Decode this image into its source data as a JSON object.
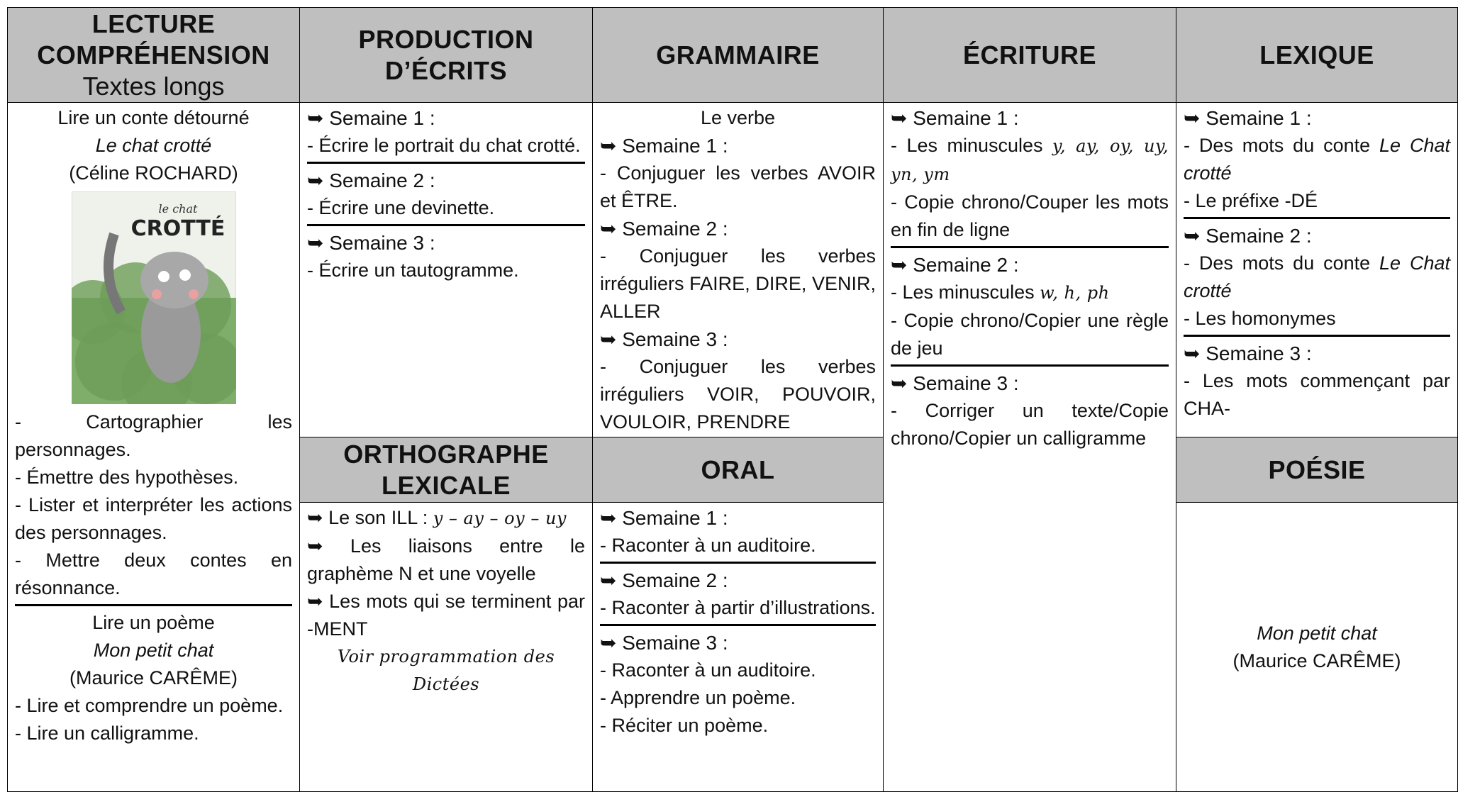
{
  "sections": {
    "lecture": {
      "heading": "LECTURE COMPRÉHENSION",
      "subheading": "Textes longs",
      "blocks": [
        [
          {
            "text": "Lire un conte détourné",
            "style": "center"
          },
          {
            "text": "Le chat crotté",
            "style": "center-italic"
          },
          {
            "text": "(Céline ROCHARD)",
            "style": "center"
          },
          {
            "image": {
              "small": "le chat",
              "big": "CROTTÉ"
            }
          },
          "- Cartographier les personnages.",
          "- Émettre des hypothèses.",
          "- Lister et interpréter les actions des personnages.",
          "- Mettre deux contes en résonnance."
        ],
        [
          {
            "text": "Lire un poème",
            "style": "center"
          },
          {
            "text": "Mon petit chat",
            "style": "center-italic"
          },
          {
            "text": "(Maurice CARÊME)",
            "style": "center"
          },
          "- Lire et comprendre un poème.",
          "- Lire un calligramme."
        ]
      ]
    },
    "production": {
      "heading": "PRODUCTION D’ÉCRITS",
      "blocks": [
        [
          {
            "text": "➥ Semaine 1 :",
            "style": "week"
          },
          "- Écrire le portrait du chat crotté."
        ],
        [
          {
            "text": "➥ Semaine 2 :",
            "style": "week"
          },
          "- Écrire une devinette."
        ],
        [
          {
            "text": "➥ Semaine 3 :",
            "style": "week"
          },
          "- Écrire un tautogramme."
        ]
      ]
    },
    "grammaire": {
      "heading": "GRAMMAIRE",
      "blocks": [
        [
          {
            "text": "Le verbe",
            "style": "center"
          },
          {
            "text": "➥ Semaine 1 :",
            "style": "week"
          },
          "- Conjuguer les verbes AVOIR et ÊTRE.",
          {
            "text": "➥ Semaine 2 :",
            "style": "week"
          },
          "- Conjuguer les verbes irréguliers FAIRE, DIRE, VENIR, ALLER",
          {
            "text": "➥ Semaine 3 :",
            "style": "week"
          },
          "- Conjuguer les verbes irréguliers VOIR, POUVOIR, VOULOIR, PRENDRE"
        ]
      ]
    },
    "ecriture": {
      "heading": "ÉCRITURE",
      "blocks": [
        [
          {
            "text": "➥ Semaine 1 :",
            "style": "week"
          },
          {
            "parts": [
              "- Les minuscules ",
              {
                "text": "y, ay, oy, uy, yn, ym",
                "style": "cursive"
              }
            ]
          },
          "- Copie chrono/Couper les mots en fin de ligne"
        ],
        [
          {
            "text": "➥ Semaine 2 :",
            "style": "week"
          },
          {
            "parts": [
              "- Les minuscules ",
              {
                "text": "w, h, ph",
                "style": "cursive"
              }
            ]
          },
          "- Copie chrono/Copier une règle de jeu"
        ],
        [
          {
            "text": "➥ Semaine 3 :",
            "style": "week"
          },
          "- Corriger un texte/Copie chrono/Copier un calligramme"
        ]
      ]
    },
    "lexique": {
      "heading": "LEXIQUE",
      "blocks": [
        [
          {
            "text": "➥ Semaine 1 :",
            "style": "week"
          },
          {
            "parts": [
              "- Des mots du conte ",
              {
                "text": "Le Chat crotté",
                "style": "italic"
              }
            ]
          },
          "- Le préfixe -DÉ"
        ],
        [
          {
            "text": "➥ Semaine 2 :",
            "style": "week"
          },
          {
            "parts": [
              "- Des mots du conte ",
              {
                "text": "Le Chat crotté",
                "style": "italic"
              }
            ]
          },
          "- Les homonymes"
        ],
        [
          {
            "text": "➥ Semaine 3 :",
            "style": "week"
          },
          "- Les mots commençant par CHA-"
        ]
      ]
    },
    "orthographe": {
      "heading": "ORTHOGRAPHE LEXICALE",
      "blocks": [
        [
          {
            "parts": [
              "➥ Le son ILL : ",
              {
                "text": "y – ay – oy – uy",
                "style": "cursive"
              }
            ]
          },
          "➥ Les liaisons entre le graphème N et une voyelle",
          "➥ Les mots qui se terminent par -MENT",
          {
            "text": "Voir programmation des Dictées",
            "style": "center-cursive"
          }
        ]
      ]
    },
    "oral": {
      "heading": "ORAL",
      "blocks": [
        [
          {
            "text": "➥ Semaine 1 :",
            "style": "week"
          },
          "- Raconter à un auditoire."
        ],
        [
          {
            "text": "➥ Semaine 2 :",
            "style": "week"
          },
          "- Raconter à partir d’illustrations."
        ],
        [
          {
            "text": "➥ Semaine 3 :",
            "style": "week"
          },
          "- Raconter à un auditoire.",
          "- Apprendre un poème.",
          "- Réciter un poème."
        ]
      ]
    },
    "poesie": {
      "heading": "POÉSIE",
      "blocks": [
        [
          {
            "text": "Mon petit chat",
            "style": "center-italic"
          },
          {
            "text": "(Maurice CARÊME)",
            "style": "center"
          }
        ]
      ]
    }
  }
}
